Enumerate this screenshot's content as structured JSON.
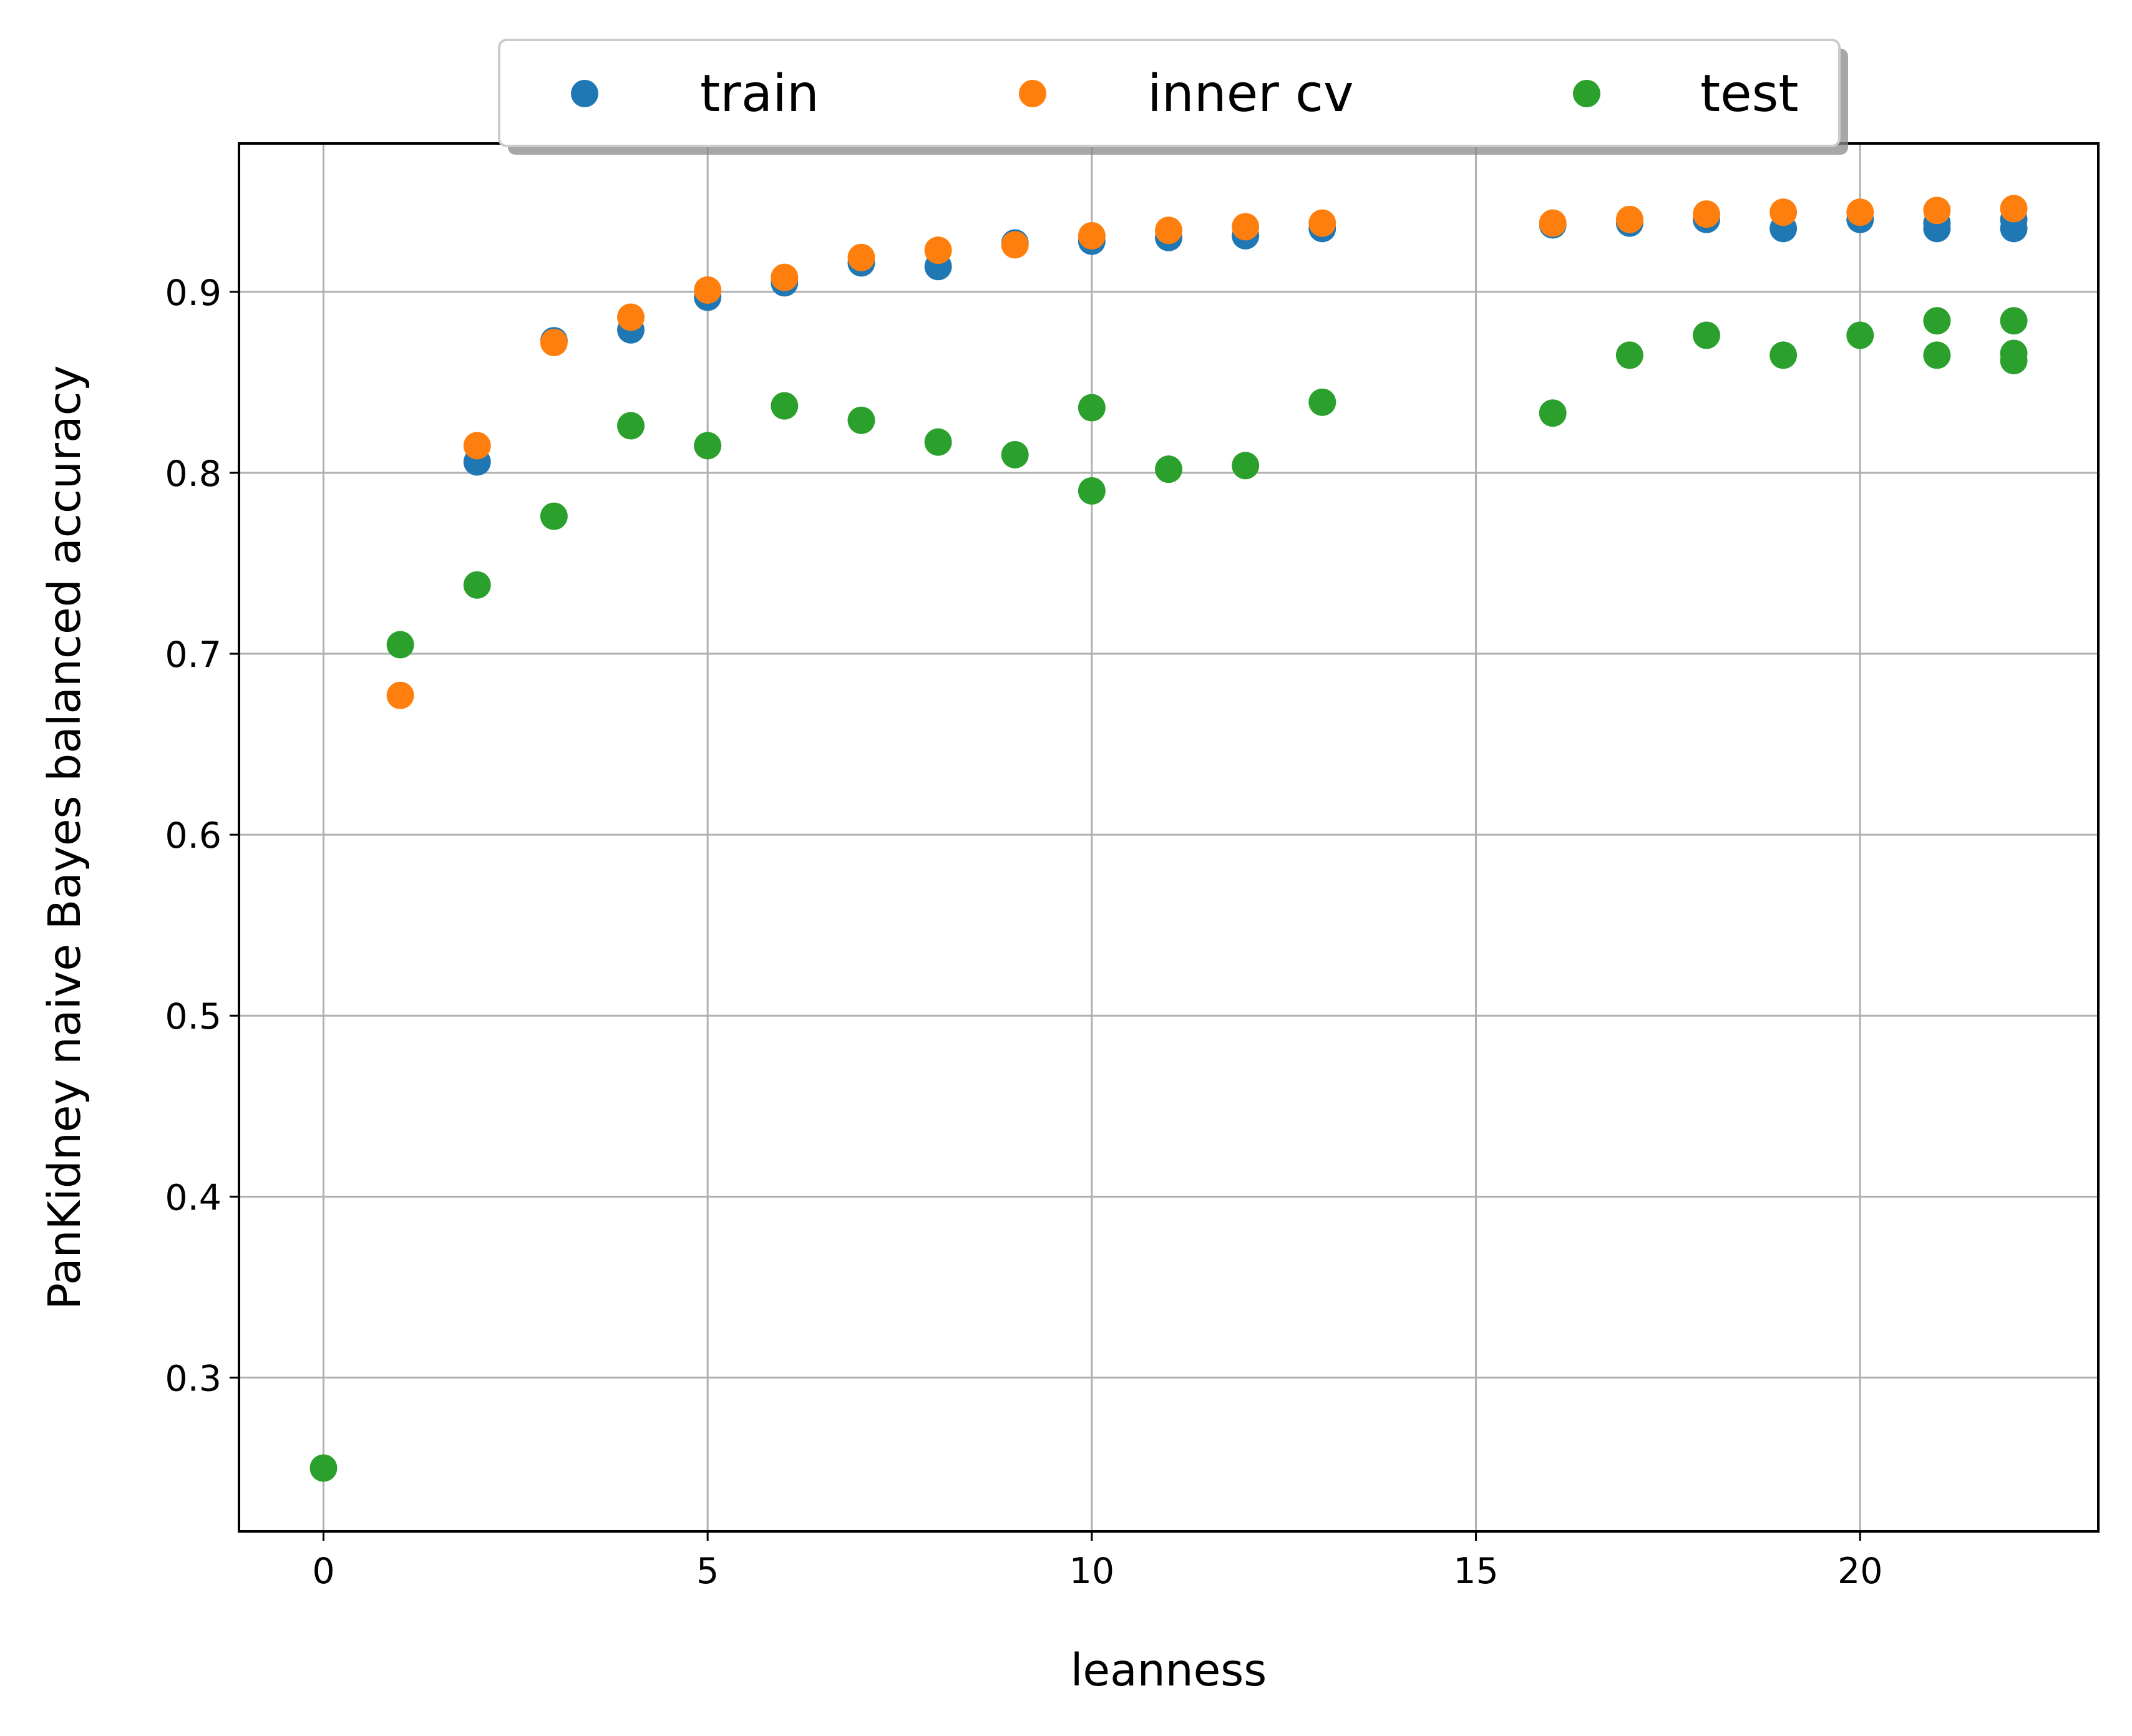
{
  "chart_data": {
    "type": "scatter",
    "xlabel": "leanness",
    "ylabel": "PanKidney naive Bayes balanced accuracy",
    "xlim": [
      -1.1,
      23.1
    ],
    "ylim": [
      0.215,
      0.982
    ],
    "xticks": [
      0,
      5,
      10,
      15,
      20
    ],
    "yticks": [
      0.3,
      0.4,
      0.5,
      0.6,
      0.7,
      0.8,
      0.9
    ],
    "grid": true,
    "legend": {
      "placement": "top-center, above axes",
      "columns": 3,
      "shadow": true
    },
    "series": [
      {
        "name": "train",
        "color": "#1f77b4",
        "points": [
          [
            2,
            0.806
          ],
          [
            3,
            0.873
          ],
          [
            4,
            0.879
          ],
          [
            5,
            0.897
          ],
          [
            6,
            0.905
          ],
          [
            7,
            0.916
          ],
          [
            8,
            0.914
          ],
          [
            9,
            0.927
          ],
          [
            10,
            0.928
          ],
          [
            11,
            0.93
          ],
          [
            12,
            0.931
          ],
          [
            13,
            0.935
          ],
          [
            16,
            0.937
          ],
          [
            17,
            0.938
          ],
          [
            18,
            0.94
          ],
          [
            19,
            0.935
          ],
          [
            20,
            0.94
          ],
          [
            21,
            0.935
          ],
          [
            21,
            0.938
          ],
          [
            22,
            0.935
          ],
          [
            22,
            0.94
          ]
        ]
      },
      {
        "name": "inner cv",
        "color": "#ff7f0e",
        "points": [
          [
            1,
            0.677
          ],
          [
            2,
            0.815
          ],
          [
            3,
            0.872
          ],
          [
            4,
            0.886
          ],
          [
            5,
            0.901
          ],
          [
            6,
            0.908
          ],
          [
            7,
            0.919
          ],
          [
            8,
            0.923
          ],
          [
            9,
            0.926
          ],
          [
            10,
            0.931
          ],
          [
            11,
            0.934
          ],
          [
            12,
            0.936
          ],
          [
            13,
            0.938
          ],
          [
            16,
            0.938
          ],
          [
            17,
            0.94
          ],
          [
            18,
            0.943
          ],
          [
            19,
            0.944
          ],
          [
            20,
            0.944
          ],
          [
            21,
            0.945
          ],
          [
            22,
            0.946
          ]
        ]
      },
      {
        "name": "test",
        "color": "#2ca02c",
        "points": [
          [
            0,
            0.25
          ],
          [
            1,
            0.705
          ],
          [
            2,
            0.738
          ],
          [
            3,
            0.776
          ],
          [
            4,
            0.826
          ],
          [
            5,
            0.815
          ],
          [
            6,
            0.837
          ],
          [
            7,
            0.829
          ],
          [
            8,
            0.817
          ],
          [
            9,
            0.81
          ],
          [
            10,
            0.836
          ],
          [
            10,
            0.79
          ],
          [
            11,
            0.802
          ],
          [
            12,
            0.804
          ],
          [
            13,
            0.839
          ],
          [
            16,
            0.833
          ],
          [
            17,
            0.865
          ],
          [
            18,
            0.876
          ],
          [
            19,
            0.865
          ],
          [
            20,
            0.876
          ],
          [
            21,
            0.884
          ],
          [
            21,
            0.865
          ],
          [
            22,
            0.884
          ],
          [
            22,
            0.866
          ],
          [
            22,
            0.862
          ]
        ]
      }
    ]
  }
}
